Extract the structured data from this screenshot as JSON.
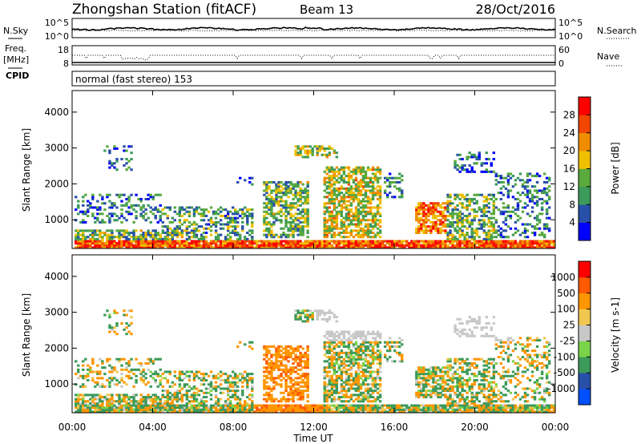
{
  "header": {
    "station": "Zhongshan Station (fitACF)",
    "beam": "Beam 13",
    "date": "28/Oct/2016"
  },
  "side_labels": {
    "nsky": "N.Sky",
    "freq_line1": "Freq.",
    "freq_line2": "[MHz]",
    "cpid": "CPID",
    "nsearch": "N.Search",
    "nave": "Nave"
  },
  "strip_ticks": {
    "nsky_top": "10^5",
    "nsky_bottom": "10^0",
    "nsearch_top": "10^5",
    "nsearch_bottom": "10^0",
    "freq_top": "18",
    "freq_bottom": "8",
    "nave_top": "60",
    "nave_bottom": "0"
  },
  "cpid_text": "normal (fast stereo) 153",
  "colors": {
    "power": [
      "#0000ff",
      "#2850a8",
      "#3c9a5a",
      "#5aaa3c",
      "#f0c000",
      "#f08c00",
      "#f04600",
      "#ff0000"
    ],
    "velocity": [
      "#ff0000",
      "#ff5a00",
      "#ff9600",
      "#f0c850",
      "#c8c8c8",
      "#7ad44a",
      "#3c9a5a",
      "#2850a8",
      "#0050ff"
    ]
  },
  "chart_data": [
    {
      "type": "heatmap",
      "title": "",
      "ylabel": "Slant Range [km]",
      "xlabel": "",
      "xlim": [
        0,
        24
      ],
      "ylim": [
        200,
        4600
      ],
      "yticks": [
        "1000",
        "2000",
        "3000",
        "4000"
      ],
      "xticks": [
        "00:00",
        "04:00",
        "08:00",
        "12:00",
        "16:00",
        "20:00",
        "00:00"
      ],
      "colorbar_label": "Power [dB]",
      "colorbar_ticks": [
        "4",
        "8",
        "12",
        "16",
        "20",
        "24",
        "28"
      ],
      "zlim": [
        0,
        30
      ]
    },
    {
      "type": "heatmap",
      "title": "",
      "ylabel": "Slant Range [km]",
      "xlabel": "Time UT",
      "xlim": [
        0,
        24
      ],
      "ylim": [
        200,
        4600
      ],
      "yticks": [
        "1000",
        "2000",
        "3000",
        "4000"
      ],
      "xticks": [
        "00:00",
        "04:00",
        "08:00",
        "12:00",
        "16:00",
        "20:00",
        "00:00"
      ],
      "colorbar_label": "Velocity [m s-1]",
      "colorbar_ticks": [
        "1000",
        "500",
        "100",
        "25",
        "-25",
        "-100",
        "-500",
        "-1000"
      ]
    }
  ]
}
